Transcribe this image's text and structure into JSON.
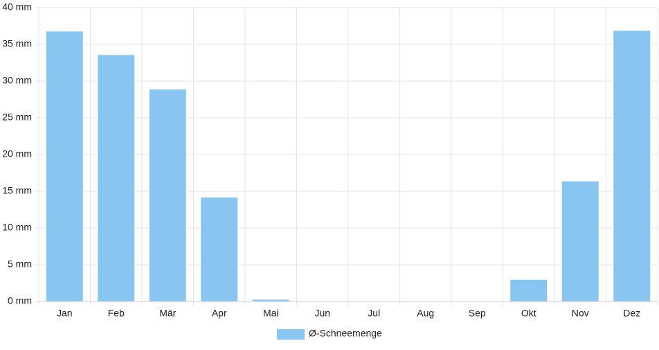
{
  "chart_data": {
    "type": "bar",
    "categories": [
      "Jan",
      "Feb",
      "Mär",
      "Apr",
      "Mai",
      "Jun",
      "Jul",
      "Aug",
      "Sep",
      "Okt",
      "Nov",
      "Dez"
    ],
    "series": [
      {
        "name": "Ø-Schneemenge",
        "color": "#88c6f1",
        "values": [
          36.8,
          33.6,
          28.9,
          14.2,
          0.3,
          0,
          0,
          0,
          0,
          3.0,
          16.4,
          36.9
        ]
      }
    ],
    "ylim": [
      0,
      40
    ],
    "yticks": [
      {
        "value": 0,
        "label": "0 mm"
      },
      {
        "value": 5,
        "label": "5 mm"
      },
      {
        "value": 10,
        "label": "10 mm"
      },
      {
        "value": 15,
        "label": "15 mm"
      },
      {
        "value": 20,
        "label": "20 mm"
      },
      {
        "value": 25,
        "label": "25 mm"
      },
      {
        "value": 30,
        "label": "30 mm"
      },
      {
        "value": 35,
        "label": "35 mm"
      },
      {
        "value": 40,
        "label": "40 mm"
      }
    ],
    "grid": true,
    "legend": "bottom"
  }
}
